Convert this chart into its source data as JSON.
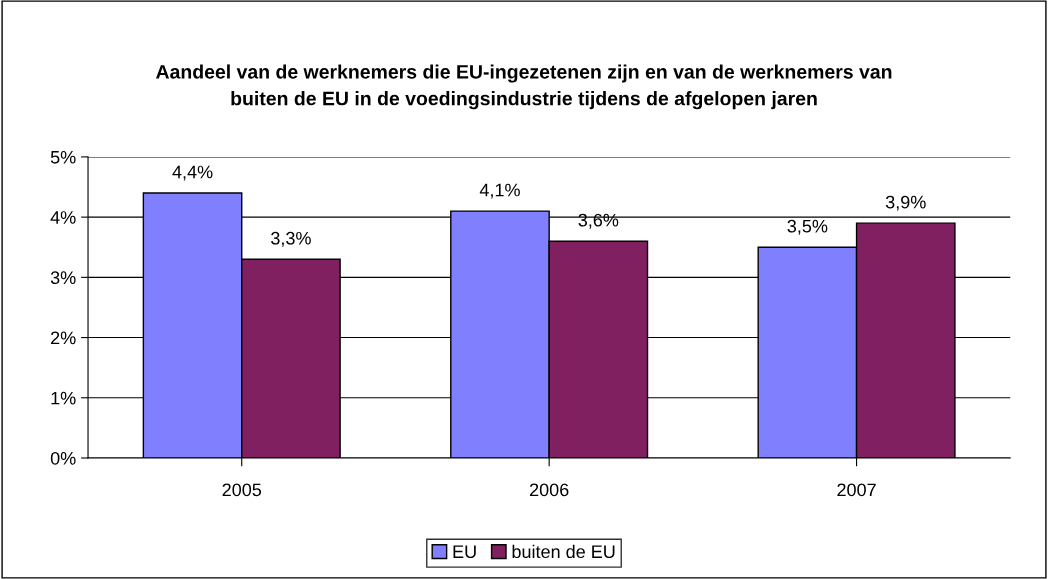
{
  "chart_data": {
    "type": "bar",
    "title": "Aandeel van de werknemers die EU-ingezetenen zijn en van de werknemers van\nbuiten de EU in de voedingsindustrie tijdens de afgelopen jaren",
    "categories": [
      "2005",
      "2006",
      "2007"
    ],
    "series": [
      {
        "name": "EU",
        "color": "#8080ff",
        "values": [
          4.4,
          4.1,
          3.5
        ],
        "value_labels": [
          "4,4%",
          "4,1%",
          "3,5%"
        ]
      },
      {
        "name": "buiten de EU",
        "color": "#802060",
        "values": [
          3.3,
          3.6,
          3.9
        ],
        "value_labels": [
          "3,3%",
          "3,6%",
          "3,9%"
        ]
      }
    ],
    "ylim": [
      0,
      5
    ],
    "yticks": [
      {
        "value": 0,
        "label": "0%"
      },
      {
        "value": 1,
        "label": "1%"
      },
      {
        "value": 2,
        "label": "2%"
      },
      {
        "value": 3,
        "label": "3%"
      },
      {
        "value": 4,
        "label": "4%"
      },
      {
        "value": 5,
        "label": "5%"
      }
    ],
    "grid": "y",
    "legend": "bottom"
  }
}
